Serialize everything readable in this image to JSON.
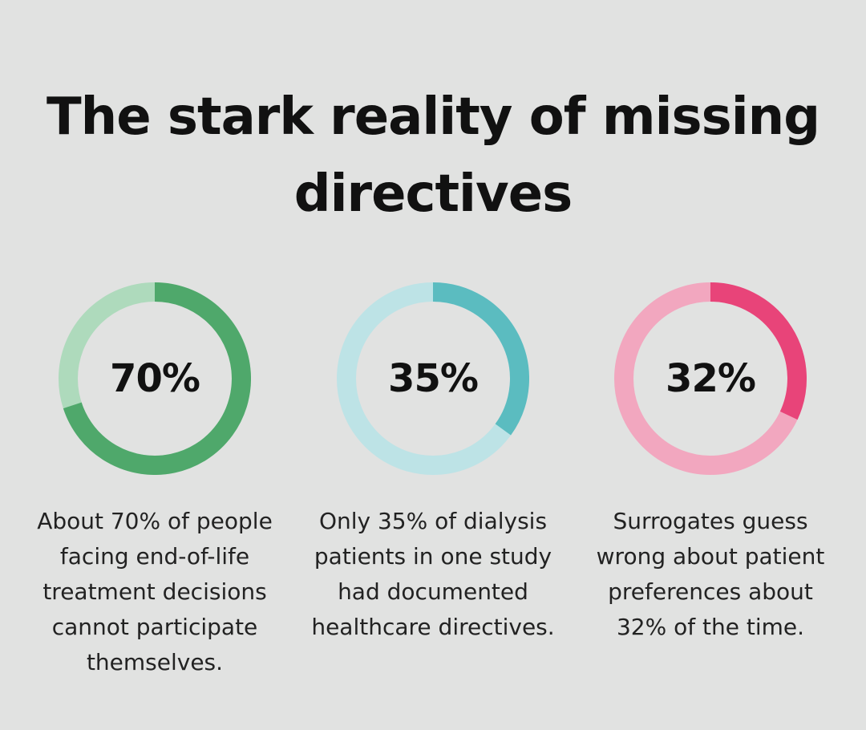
{
  "title": "The stark reality of missing directives",
  "chart_data": [
    {
      "type": "pie",
      "variant": "donut",
      "value": 70,
      "label": "70%",
      "caption": "About 70% of people facing end-of-life treatment decisions cannot participate themselves.",
      "colors": {
        "fill": "#4fa86b",
        "track": "#aedabc"
      }
    },
    {
      "type": "pie",
      "variant": "donut",
      "value": 35,
      "label": "35%",
      "caption": "Only 35% of dialysis patients in one study had documented healthcare directives.",
      "colors": {
        "fill": "#5bbcc0",
        "track": "#bde3e6"
      }
    },
    {
      "type": "pie",
      "variant": "donut",
      "value": 32,
      "label": "32%",
      "caption": "Surrogates guess wrong about patient preferences about 32% of the time.",
      "colors": {
        "fill": "#e84479",
        "track": "#f2a7bf"
      }
    }
  ],
  "colors": {
    "background": "#e1e2e1",
    "text": "#111111"
  }
}
